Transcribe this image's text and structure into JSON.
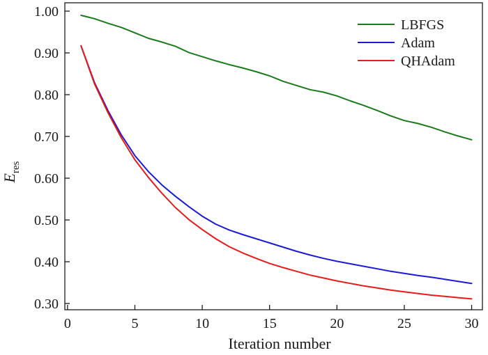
{
  "chart_data": {
    "type": "line",
    "xlabel": "Iteration number",
    "ylabel": "E",
    "ylabel_subscript": "res",
    "xlim": [
      -0.2,
      30.8
    ],
    "ylim": [
      0.285,
      1.02
    ],
    "x_ticks": [
      0,
      5,
      10,
      15,
      20,
      25,
      30
    ],
    "x_tick_labels": [
      "0",
      "5",
      "10",
      "15",
      "20",
      "25",
      "30"
    ],
    "y_ticks": [
      0.3,
      0.4,
      0.5,
      0.6,
      0.7,
      0.8,
      0.9,
      1.0
    ],
    "y_tick_labels": [
      "0.30",
      "0.40",
      "0.50",
      "0.60",
      "0.70",
      "0.80",
      "0.90",
      "1.00"
    ],
    "grid": false,
    "legend_position": "top-right",
    "x": [
      1,
      2,
      3,
      4,
      5,
      6,
      7,
      8,
      9,
      10,
      11,
      12,
      13,
      14,
      15,
      16,
      17,
      18,
      19,
      20,
      21,
      22,
      23,
      24,
      25,
      26,
      27,
      28,
      29,
      30
    ],
    "series": [
      {
        "name": "LBFGS",
        "color": "#1a7a1a",
        "values": [
          0.99,
          0.982,
          0.971,
          0.961,
          0.948,
          0.935,
          0.926,
          0.916,
          0.901,
          0.891,
          0.881,
          0.872,
          0.864,
          0.855,
          0.845,
          0.832,
          0.822,
          0.812,
          0.806,
          0.797,
          0.785,
          0.774,
          0.762,
          0.749,
          0.738,
          0.731,
          0.722,
          0.711,
          0.701,
          0.692
        ]
      },
      {
        "name": "Adam",
        "color": "#1a1ad8",
        "values": [
          0.917,
          0.829,
          0.762,
          0.703,
          0.654,
          0.616,
          0.584,
          0.557,
          0.532,
          0.509,
          0.49,
          0.476,
          0.465,
          0.455,
          0.445,
          0.435,
          0.425,
          0.416,
          0.408,
          0.401,
          0.395,
          0.389,
          0.383,
          0.377,
          0.372,
          0.367,
          0.363,
          0.358,
          0.353,
          0.348
        ]
      },
      {
        "name": "QHAdam",
        "color": "#e81a1a",
        "values": [
          0.917,
          0.826,
          0.757,
          0.696,
          0.644,
          0.602,
          0.564,
          0.53,
          0.501,
          0.477,
          0.455,
          0.436,
          0.421,
          0.408,
          0.396,
          0.386,
          0.377,
          0.368,
          0.361,
          0.354,
          0.348,
          0.342,
          0.337,
          0.332,
          0.328,
          0.324,
          0.32,
          0.317,
          0.314,
          0.311
        ]
      }
    ]
  }
}
